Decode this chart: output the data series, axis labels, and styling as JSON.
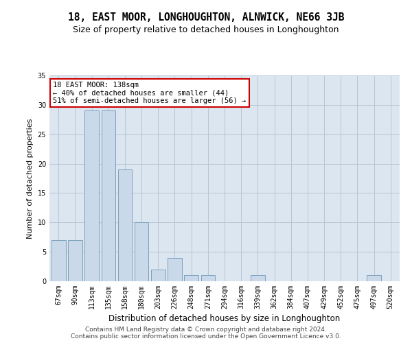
{
  "title": "18, EAST MOOR, LONGHOUGHTON, ALNWICK, NE66 3JB",
  "subtitle": "Size of property relative to detached houses in Longhoughton",
  "xlabel": "Distribution of detached houses by size in Longhoughton",
  "ylabel": "Number of detached properties",
  "categories": [
    "67sqm",
    "90sqm",
    "113sqm",
    "135sqm",
    "158sqm",
    "180sqm",
    "203sqm",
    "226sqm",
    "248sqm",
    "271sqm",
    "294sqm",
    "316sqm",
    "339sqm",
    "362sqm",
    "384sqm",
    "407sqm",
    "429sqm",
    "452sqm",
    "475sqm",
    "497sqm",
    "520sqm"
  ],
  "values": [
    7,
    7,
    29,
    29,
    19,
    10,
    2,
    4,
    1,
    1,
    0,
    0,
    1,
    0,
    0,
    0,
    0,
    0,
    0,
    1,
    0
  ],
  "bar_color": "#c9d9ea",
  "bar_edge_color": "#7ba0bb",
  "annotation_box_text": "18 EAST MOOR: 138sqm\n← 40% of detached houses are smaller (44)\n51% of semi-detached houses are larger (56) →",
  "annotation_box_color": "white",
  "annotation_box_edge_color": "#cc0000",
  "ylim": [
    0,
    35
  ],
  "yticks": [
    0,
    5,
    10,
    15,
    20,
    25,
    30,
    35
  ],
  "grid_color": "#b8c4d4",
  "bg_color": "#dce6f0",
  "footer_line1": "Contains HM Land Registry data © Crown copyright and database right 2024.",
  "footer_line2": "Contains public sector information licensed under the Open Government Licence v3.0.",
  "title_fontsize": 10.5,
  "subtitle_fontsize": 9,
  "xlabel_fontsize": 8.5,
  "ylabel_fontsize": 8,
  "tick_fontsize": 7,
  "footer_fontsize": 6.5,
  "ann_fontsize": 7.5
}
